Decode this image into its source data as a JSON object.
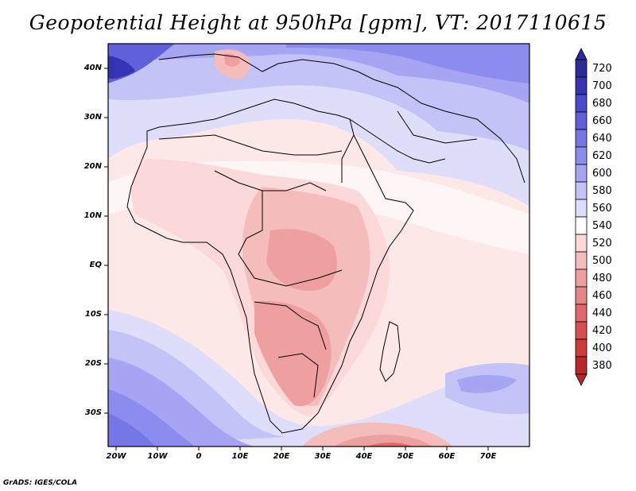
{
  "title": "Geopotential Height at 950hPa [gpm], VT: 2017110615",
  "credit": "GrADS: IGES/COLA",
  "axes": {
    "y_labels": [
      "40N",
      "30N",
      "20N",
      "10N",
      "EQ",
      "10S",
      "20S",
      "30S"
    ],
    "x_labels": [
      "20W",
      "10W",
      "0",
      "10E",
      "20E",
      "30E",
      "40E",
      "50E",
      "60E",
      "70E"
    ]
  },
  "colorbar": {
    "levels": [
      "720",
      "700",
      "680",
      "660",
      "640",
      "620",
      "600",
      "580",
      "560",
      "540",
      "520",
      "500",
      "480",
      "460",
      "440",
      "420",
      "400",
      "380"
    ],
    "colors": [
      "#2a2a9a",
      "#3434b4",
      "#4a4acd",
      "#6060db",
      "#7676e6",
      "#8c8cee",
      "#a5a5f3",
      "#c3c3f7",
      "#dedefa",
      "#ffffff",
      "#fbd9d9",
      "#f5bcbc",
      "#eea0a0",
      "#e78686",
      "#e06a6a",
      "#d94f4f",
      "#cf3a3a",
      "#b82828"
    ]
  },
  "map_regions": {
    "high_latitude_band_color": "#8080e6",
    "africa_interior_color": "#f0a8a8",
    "ocean_neutral_color": "#fbe3e3"
  }
}
